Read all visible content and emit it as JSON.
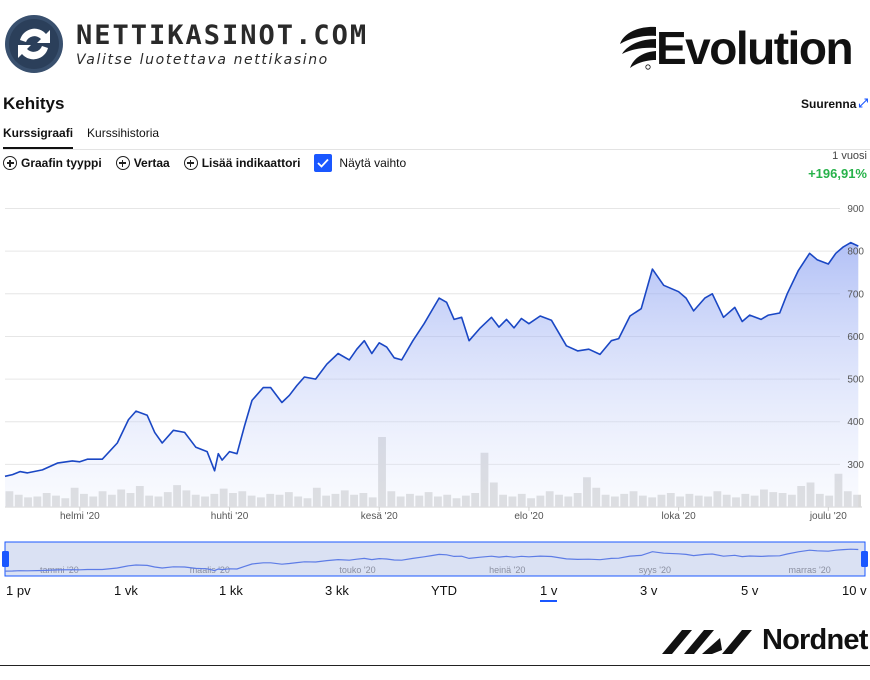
{
  "header": {
    "site_title": "NETTIKASINOT.COM",
    "site_tagline": "Valitse luotettava nettikasino",
    "company_logo_text": "Evolution"
  },
  "widget": {
    "title": "Kehitys",
    "expand_label": "Suurenna",
    "tabs": [
      {
        "label": "Kurssigraafi",
        "active": true
      },
      {
        "label": "Kurssihistoria",
        "active": false
      }
    ],
    "toolbar": {
      "chart_type": "Graafin tyyppi",
      "compare": "Vertaa",
      "add_indicator": "Lisää indikaattori",
      "show_volume": "Näytä vaihto",
      "show_volume_checked": true
    },
    "period": {
      "label": "1 vuosi",
      "change": "+196,91%"
    }
  },
  "chart_data": {
    "type": "area",
    "y_ticks": [
      "900",
      "800",
      "700",
      "600",
      "500",
      "400",
      "300"
    ],
    "ylim": [
      200,
      920
    ],
    "x_labels": [
      "helmi '20",
      "huhti '20",
      "kesä '20",
      "elo '20",
      "loka '20",
      "joulu '20"
    ],
    "x_label_positions": [
      1,
      3,
      5,
      7,
      9,
      11
    ],
    "xlim": [
      0,
      11.45
    ],
    "x_unit": "months since start of Jan 2020",
    "series": [
      {
        "name": "",
        "x": [
          0,
          0.1,
          0.2,
          0.3,
          0.5,
          0.7,
          0.9,
          1.0,
          1.1,
          1.3,
          1.5,
          1.65,
          1.75,
          1.9,
          2.0,
          2.1,
          2.25,
          2.4,
          2.55,
          2.7,
          2.8,
          2.85,
          2.9,
          3.0,
          3.1,
          3.2,
          3.3,
          3.45,
          3.55,
          3.7,
          3.8,
          3.9,
          4.0,
          4.15,
          4.3,
          4.45,
          4.6,
          4.7,
          4.8,
          4.9,
          5.0,
          5.1,
          5.2,
          5.3,
          5.45,
          5.6,
          5.7,
          5.8,
          5.9,
          6.0,
          6.1,
          6.2,
          6.35,
          6.5,
          6.6,
          6.7,
          6.8,
          6.9,
          7.0,
          7.15,
          7.3,
          7.5,
          7.65,
          7.8,
          7.95,
          8.1,
          8.2,
          8.35,
          8.5,
          8.65,
          8.8,
          9.0,
          9.1,
          9.2,
          9.35,
          9.45,
          9.6,
          9.75,
          9.85,
          9.95,
          10.1,
          10.2,
          10.35,
          10.45,
          10.6,
          10.75,
          10.85,
          11.0,
          11.1,
          11.2,
          11.3,
          11.4
        ],
        "y": [
          272,
          276,
          283,
          280,
          287,
          303,
          308,
          306,
          312,
          312,
          350,
          405,
          425,
          415,
          375,
          350,
          380,
          375,
          340,
          330,
          285,
          325,
          310,
          330,
          325,
          390,
          450,
          480,
          480,
          445,
          462,
          485,
          505,
          500,
          535,
          560,
          545,
          570,
          590,
          560,
          585,
          575,
          550,
          545,
          590,
          630,
          660,
          690,
          680,
          640,
          645,
          590,
          620,
          645,
          622,
          640,
          620,
          642,
          630,
          648,
          638,
          578,
          566,
          570,
          558,
          590,
          595,
          648,
          665,
          758,
          720,
          705,
          690,
          660,
          690,
          700,
          645,
          668,
          635,
          650,
          640,
          650,
          655,
          700,
          755,
          795,
          780,
          770,
          795,
          810,
          820,
          812
        ],
        "color": "#1a47c4"
      }
    ],
    "volume": [
      18,
      14,
      11,
      12,
      16,
      13,
      10,
      22,
      15,
      12,
      18,
      14,
      20,
      16,
      24,
      13,
      12,
      17,
      25,
      19,
      14,
      12,
      15,
      21,
      16,
      18,
      13,
      11,
      15,
      14,
      17,
      12,
      10,
      22,
      13,
      15,
      19,
      14,
      16,
      11,
      80,
      18,
      12,
      15,
      13,
      17,
      12,
      14,
      10,
      13,
      16,
      62,
      28,
      14,
      12,
      15,
      10,
      13,
      18,
      14,
      12,
      16,
      34,
      22,
      14,
      12,
      15,
      18,
      13,
      11,
      14,
      16,
      12,
      15,
      13,
      12,
      18,
      14,
      11,
      15,
      13,
      20,
      17,
      16,
      14,
      24,
      28,
      15,
      13,
      38,
      18,
      14
    ],
    "navigator_labels": [
      "tammi '20",
      "maalis '20",
      "touko '20",
      "heinä '20",
      "syys '20",
      "marras '20"
    ],
    "navigator_label_positions": [
      0,
      2,
      4,
      6,
      8,
      10
    ]
  },
  "ranges": [
    {
      "label": "1 pv",
      "active": false
    },
    {
      "label": "1 vk",
      "active": false
    },
    {
      "label": "1 kk",
      "active": false
    },
    {
      "label": "3 kk",
      "active": false
    },
    {
      "label": "YTD",
      "active": false
    },
    {
      "label": "1 v",
      "active": true
    },
    {
      "label": "3 v",
      "active": false
    },
    {
      "label": "5 v",
      "active": false
    },
    {
      "label": "10 v",
      "active": false
    }
  ],
  "footer": {
    "source_logo_text": "Nordnet"
  },
  "colors": {
    "accent": "#1a57ff",
    "line": "#1a47c4",
    "positive": "#27b24a"
  }
}
